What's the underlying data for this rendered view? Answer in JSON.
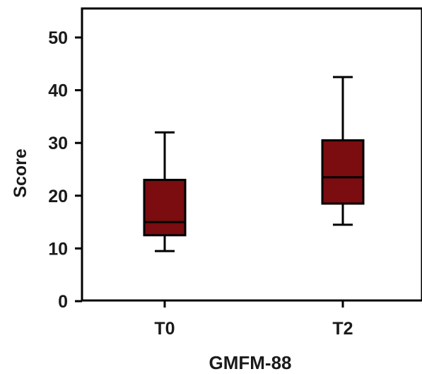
{
  "chart_data": {
    "type": "box",
    "title": "",
    "xlabel": "GMFM-88",
    "ylabel": "Score",
    "ylim": [
      0,
      55
    ],
    "yticks": [
      0,
      10,
      20,
      30,
      40,
      50
    ],
    "grid": false,
    "categories": [
      "T0",
      "T2"
    ],
    "series": [
      {
        "color": "#7b0c10",
        "boxes": [
          {
            "category": "T0",
            "whisker_low": 9.5,
            "q1": 12.5,
            "median": 15,
            "q3": 23,
            "whisker_high": 32
          },
          {
            "category": "T2",
            "whisker_low": 14.5,
            "q1": 18.5,
            "median": 23.5,
            "q3": 30.5,
            "whisker_high": 42.5
          }
        ]
      }
    ]
  }
}
